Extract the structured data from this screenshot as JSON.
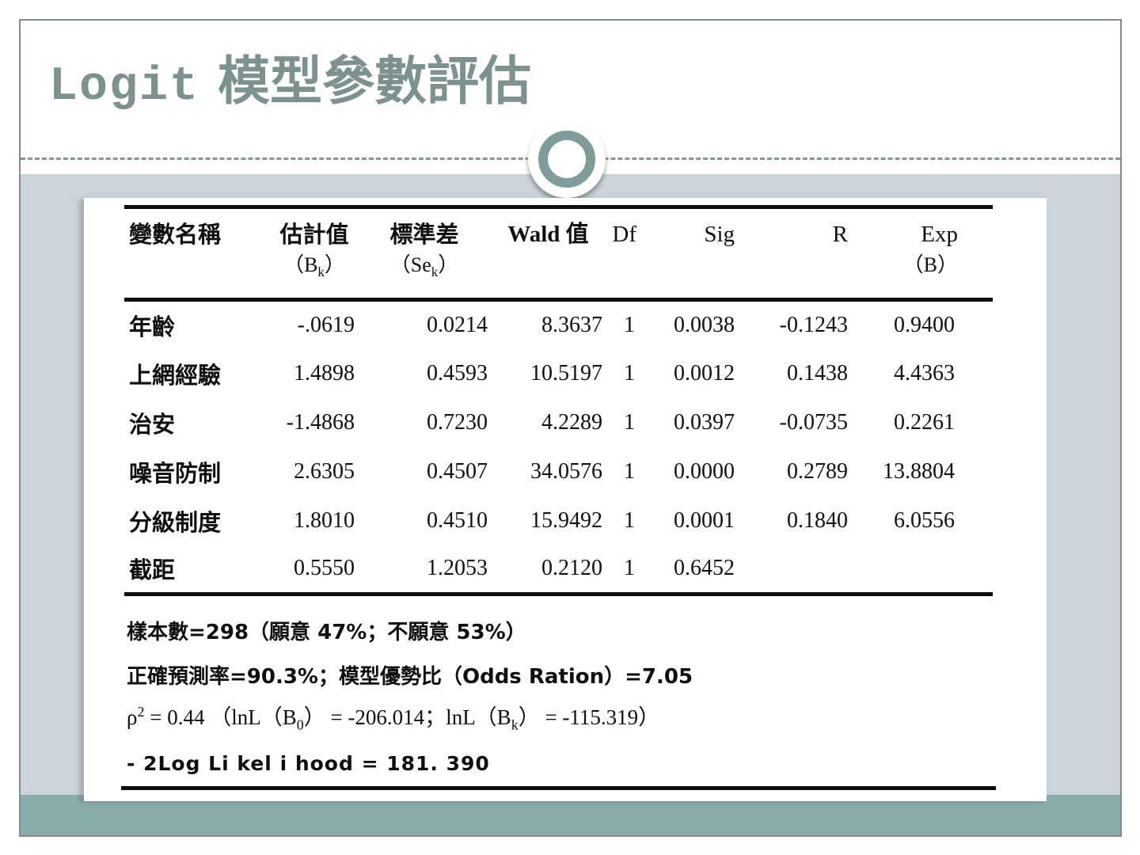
{
  "slide": {
    "title": {
      "latin": "Logit",
      "cjk": " 模型參數評估"
    },
    "ornament": "circle-ring-ornament",
    "colors": {
      "title_text": "#7d918e",
      "frame_border": "#7f8e8c",
      "band_light": "#cad4d9",
      "band_teal": "#8aacaa",
      "ring_teal": "#7f9c9a",
      "table_ink": "#0d0d0d"
    }
  },
  "table": {
    "headers": [
      {
        "line1": "變數名稱"
      },
      {
        "line1": "估計值",
        "sub_pre": "（B",
        "sub": "k",
        "sub_post": "）"
      },
      {
        "line1": "標準差",
        "sub_pre": "（Se",
        "sub": "k",
        "sub_post": "）"
      },
      {
        "line1": "Wald 值"
      },
      {
        "line1": "Df"
      },
      {
        "line1": "Sig"
      },
      {
        "line1": "R"
      },
      {
        "line1": "Exp",
        "sub_pre": "（B）"
      }
    ],
    "rows": [
      [
        "年齡",
        "-.0619",
        "0.0214",
        "8.3637",
        "1",
        "0.0038",
        "-0.1243",
        "0.9400"
      ],
      [
        "上網經驗",
        "1.4898",
        "0.4593",
        "10.5197",
        "1",
        "0.0012",
        "0.1438",
        "4.4363"
      ],
      [
        "治安",
        "-1.4868",
        "0.7230",
        "4.2289",
        "1",
        "0.0397",
        "-0.0735",
        "0.2261"
      ],
      [
        "噪音防制",
        "2.6305",
        "0.4507",
        "34.0576",
        "1",
        "0.0000",
        "0.2789",
        "13.8804"
      ],
      [
        "分級制度",
        "1.8010",
        "0.4510",
        "15.9492",
        "1",
        "0.0001",
        "0.1840",
        "6.0556"
      ],
      [
        "截距",
        "0.5550",
        "1.2053",
        "0.2120",
        "1",
        "0.6452",
        "",
        ""
      ]
    ]
  },
  "footnotes": {
    "sample": "樣本數=298（願意 47%；不願意 53%）",
    "accuracy": "正確預測率=90.3%；模型優勢比（Odds Ration）=7.05",
    "rho": {
      "p1": "ρ",
      "sup": "2",
      "p2": " = 0.44 （lnL（B",
      "sub0": "0",
      "p3": "） = -206.014；lnL（B",
      "subk": "k",
      "p4": "） = -115.319）"
    },
    "loglik": "- 2Log Li kel i hood = 181. 390"
  }
}
